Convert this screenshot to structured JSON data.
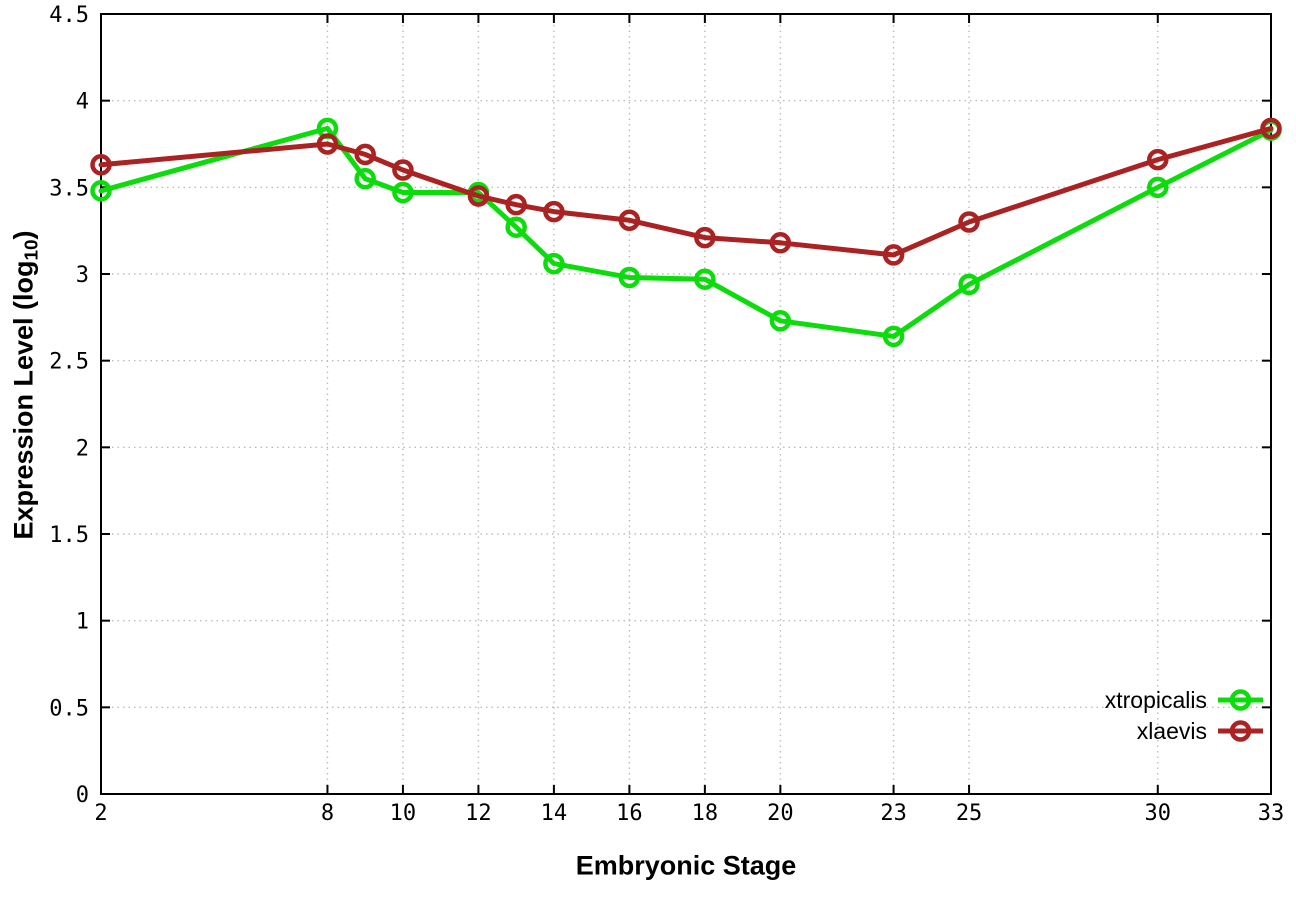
{
  "chart_data": {
    "type": "line",
    "title": "",
    "xlabel": "Embryonic Stage",
    "ylabel": {
      "main": "Expression Level (log",
      "sub": "10",
      "end": ")"
    },
    "xlim": [
      2,
      33
    ],
    "ylim": [
      0,
      4.5
    ],
    "x_ticks": [
      2,
      8,
      10,
      12,
      14,
      16,
      18,
      20,
      23,
      25,
      30,
      33
    ],
    "x_tick_labels": [
      "2",
      "8",
      "10",
      "12",
      "14",
      "16",
      "18",
      "20",
      "23",
      "25",
      "30",
      "33"
    ],
    "y_ticks": [
      0,
      0.5,
      1,
      1.5,
      2,
      2.5,
      3,
      3.5,
      4,
      4.5
    ],
    "y_tick_labels": [
      "0",
      "0.5",
      "1",
      "1.5",
      "2",
      "2.5",
      "3",
      "3.5",
      "4",
      "4.5"
    ],
    "grid": true,
    "legend_position": "inside-right-lower",
    "x": [
      2,
      8,
      9,
      10,
      12,
      13,
      14,
      16,
      18,
      20,
      23,
      25,
      30,
      33
    ],
    "series": [
      {
        "name": "xtropicalis",
        "color": "#0cdc0c",
        "marker": "open-circle",
        "values": [
          3.48,
          3.84,
          3.55,
          3.47,
          3.47,
          3.27,
          3.06,
          2.98,
          2.97,
          2.73,
          2.64,
          2.94,
          3.5,
          3.83
        ]
      },
      {
        "name": "xlaevis",
        "color": "#aa2222",
        "marker": "open-circle",
        "values": [
          3.63,
          3.75,
          3.69,
          3.6,
          3.45,
          3.4,
          3.36,
          3.31,
          3.21,
          3.18,
          3.11,
          3.3,
          3.66,
          3.84
        ]
      }
    ],
    "colors": {
      "border": "#000000",
      "grid": "#bdbdbd",
      "background": "#ffffff"
    }
  }
}
